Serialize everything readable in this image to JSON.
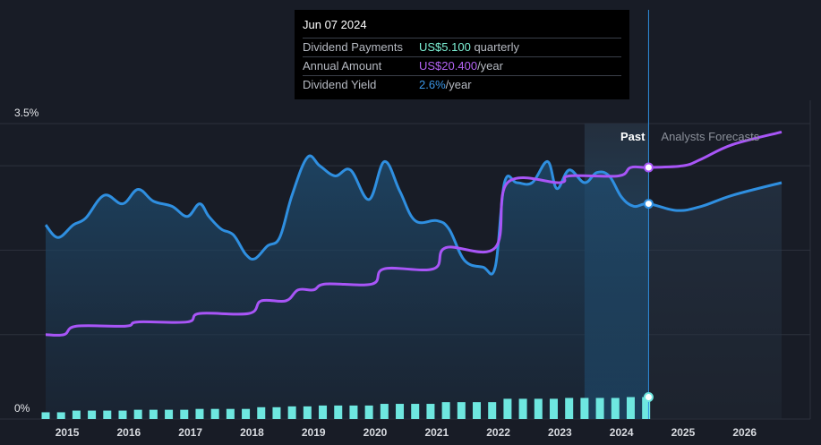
{
  "tooltip": {
    "date": "Jun 07 2024",
    "rows": [
      {
        "label": "Dividend Payments",
        "value": "US$5.100",
        "suffix": " quarterly",
        "color": "#7df2d6"
      },
      {
        "label": "Annual Amount",
        "value": "US$20.400",
        "suffix": "/year",
        "color": "#b464f5"
      },
      {
        "label": "Dividend Yield",
        "value": "2.6%",
        "suffix": "/year",
        "color": "#3b96e6"
      }
    ]
  },
  "labels": {
    "past": "Past",
    "forecast": "Analysts Forecasts"
  },
  "colors": {
    "background": "#181c26",
    "yield_line": "#2f8fe0",
    "annual_line": "#a855f7",
    "bars": "#6ee7e0",
    "grid": "#2c313c"
  },
  "chart_data": {
    "type": "line",
    "x_ticks": [
      "2015",
      "2016",
      "2017",
      "2018",
      "2019",
      "2020",
      "2021",
      "2022",
      "2023",
      "2024",
      "2025",
      "2026"
    ],
    "y_ticks": [
      "3.5%",
      "0%"
    ],
    "ylim": [
      0,
      3.5
    ],
    "xlim": [
      2014.65,
      2026.6
    ],
    "past_end": 2024.44,
    "shaded_start": 2023.4,
    "series": [
      {
        "name": "Dividend Yield",
        "unit": "%",
        "points": [
          [
            2014.65,
            2.3
          ],
          [
            2014.85,
            2.15
          ],
          [
            2015.1,
            2.3
          ],
          [
            2015.3,
            2.38
          ],
          [
            2015.6,
            2.65
          ],
          [
            2015.9,
            2.55
          ],
          [
            2016.15,
            2.72
          ],
          [
            2016.4,
            2.58
          ],
          [
            2016.7,
            2.52
          ],
          [
            2016.95,
            2.4
          ],
          [
            2017.15,
            2.55
          ],
          [
            2017.3,
            2.4
          ],
          [
            2017.5,
            2.25
          ],
          [
            2017.7,
            2.18
          ],
          [
            2017.9,
            1.95
          ],
          [
            2018.05,
            1.9
          ],
          [
            2018.25,
            2.05
          ],
          [
            2018.45,
            2.15
          ],
          [
            2018.65,
            2.65
          ],
          [
            2018.9,
            3.1
          ],
          [
            2019.1,
            3.0
          ],
          [
            2019.35,
            2.88
          ],
          [
            2019.6,
            2.95
          ],
          [
            2019.9,
            2.6
          ],
          [
            2020.15,
            3.05
          ],
          [
            2020.4,
            2.7
          ],
          [
            2020.65,
            2.35
          ],
          [
            2021.0,
            2.35
          ],
          [
            2021.2,
            2.25
          ],
          [
            2021.45,
            1.88
          ],
          [
            2021.75,
            1.8
          ],
          [
            2021.95,
            1.8
          ],
          [
            2022.1,
            2.8
          ],
          [
            2022.3,
            2.8
          ],
          [
            2022.55,
            2.8
          ],
          [
            2022.8,
            3.05
          ],
          [
            2022.95,
            2.73
          ],
          [
            2023.15,
            2.95
          ],
          [
            2023.4,
            2.8
          ],
          [
            2023.6,
            2.92
          ],
          [
            2023.8,
            2.88
          ],
          [
            2024.0,
            2.63
          ],
          [
            2024.2,
            2.52
          ],
          [
            2024.44,
            2.55
          ],
          [
            2024.9,
            2.47
          ],
          [
            2025.3,
            2.52
          ],
          [
            2025.8,
            2.65
          ],
          [
            2026.6,
            2.8
          ]
        ]
      },
      {
        "name": "Annual Amount",
        "unit": "US$/year",
        "points": [
          [
            2014.65,
            1.0
          ],
          [
            2014.95,
            1.0
          ],
          [
            2015.15,
            1.1
          ],
          [
            2015.95,
            1.1
          ],
          [
            2016.15,
            1.15
          ],
          [
            2016.95,
            1.15
          ],
          [
            2017.15,
            1.25
          ],
          [
            2017.95,
            1.25
          ],
          [
            2018.15,
            1.4
          ],
          [
            2018.55,
            1.4
          ],
          [
            2018.75,
            1.53
          ],
          [
            2019.0,
            1.53
          ],
          [
            2019.2,
            1.6
          ],
          [
            2019.95,
            1.6
          ],
          [
            2020.15,
            1.78
          ],
          [
            2020.95,
            1.78
          ],
          [
            2021.15,
            2.03
          ],
          [
            2021.95,
            2.03
          ],
          [
            2022.15,
            2.8
          ],
          [
            2023.0,
            2.8
          ],
          [
            2023.15,
            2.88
          ],
          [
            2023.95,
            2.88
          ],
          [
            2024.15,
            2.98
          ],
          [
            2024.44,
            2.98
          ],
          [
            2025.0,
            3.0
          ],
          [
            2025.3,
            3.08
          ],
          [
            2025.8,
            3.25
          ],
          [
            2026.6,
            3.4
          ]
        ]
      }
    ],
    "bars": {
      "name": "Dividend Payments",
      "points": [
        [
          2014.65,
          0.08
        ],
        [
          2014.9,
          0.08
        ],
        [
          2015.15,
          0.1
        ],
        [
          2015.4,
          0.1
        ],
        [
          2015.65,
          0.1
        ],
        [
          2015.9,
          0.1
        ],
        [
          2016.15,
          0.11
        ],
        [
          2016.4,
          0.11
        ],
        [
          2016.65,
          0.11
        ],
        [
          2016.9,
          0.11
        ],
        [
          2017.15,
          0.12
        ],
        [
          2017.4,
          0.12
        ],
        [
          2017.65,
          0.12
        ],
        [
          2017.9,
          0.12
        ],
        [
          2018.15,
          0.14
        ],
        [
          2018.4,
          0.14
        ],
        [
          2018.65,
          0.15
        ],
        [
          2018.9,
          0.15
        ],
        [
          2019.15,
          0.16
        ],
        [
          2019.4,
          0.16
        ],
        [
          2019.65,
          0.16
        ],
        [
          2019.9,
          0.16
        ],
        [
          2020.15,
          0.18
        ],
        [
          2020.4,
          0.18
        ],
        [
          2020.65,
          0.18
        ],
        [
          2020.9,
          0.18
        ],
        [
          2021.15,
          0.2
        ],
        [
          2021.4,
          0.2
        ],
        [
          2021.65,
          0.2
        ],
        [
          2021.9,
          0.2
        ],
        [
          2022.15,
          0.24
        ],
        [
          2022.4,
          0.24
        ],
        [
          2022.65,
          0.24
        ],
        [
          2022.9,
          0.24
        ],
        [
          2023.15,
          0.25
        ],
        [
          2023.4,
          0.25
        ],
        [
          2023.65,
          0.25
        ],
        [
          2023.9,
          0.25
        ],
        [
          2024.15,
          0.26
        ],
        [
          2024.4,
          0.26
        ]
      ]
    }
  }
}
